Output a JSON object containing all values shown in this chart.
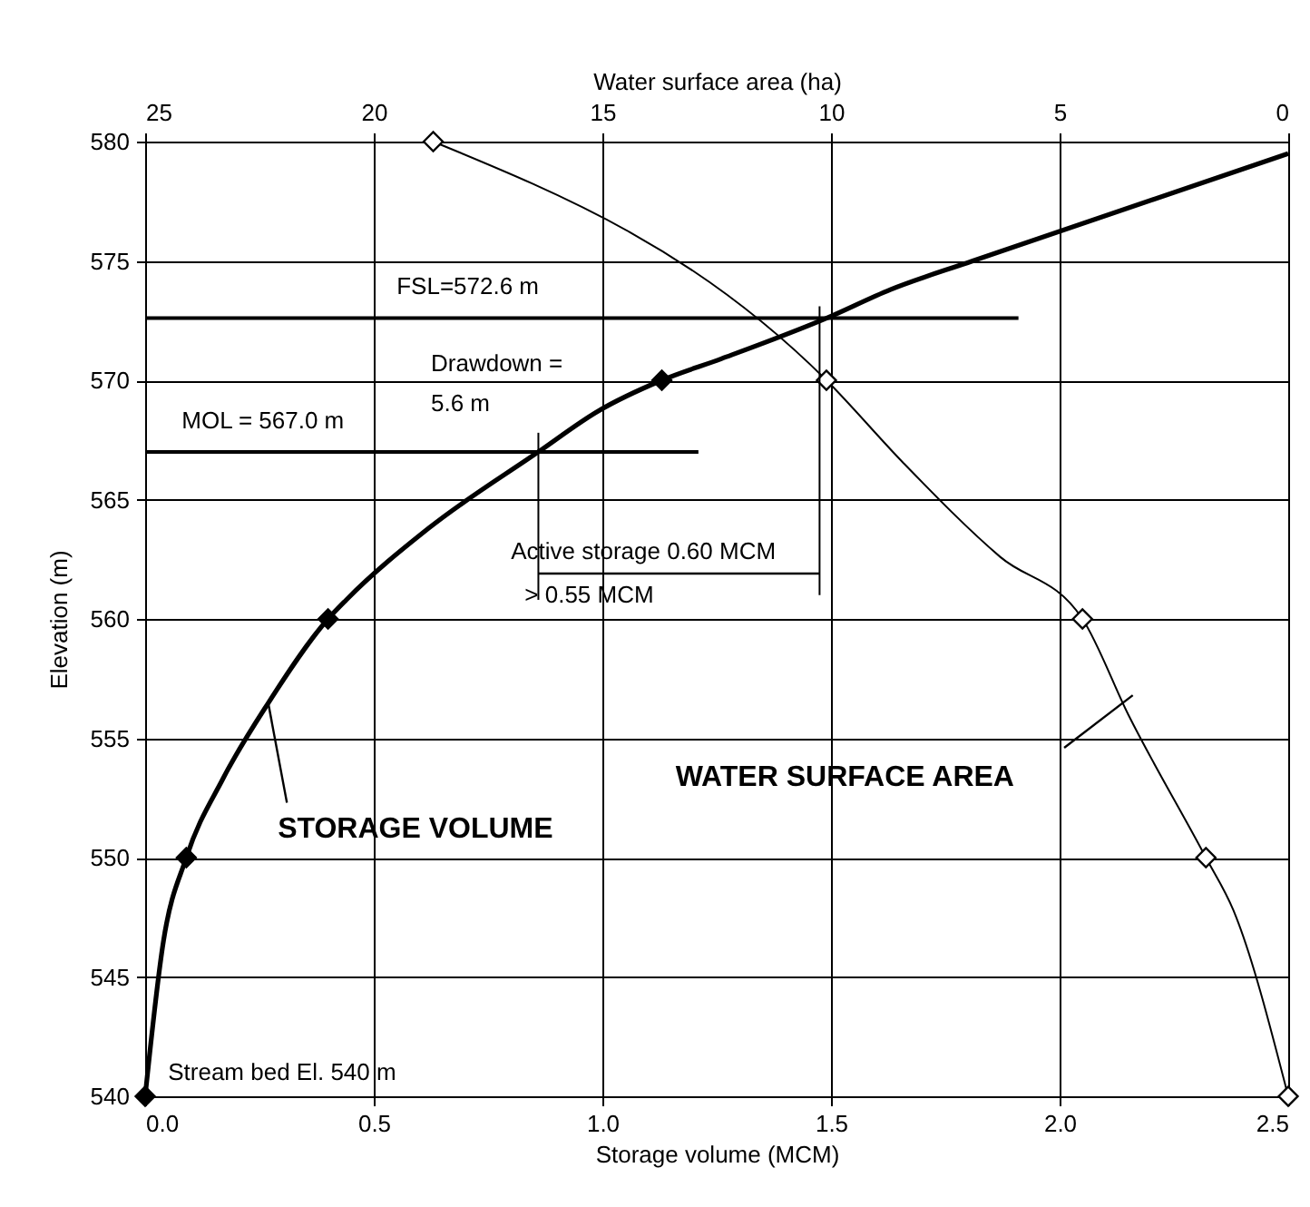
{
  "chart_data": {
    "type": "line",
    "xlabel": "Storage volume (MCM)",
    "ylabel": "Elevation (m)",
    "x2label": "Water surface area (ha)",
    "xlim": [
      0,
      2.5
    ],
    "xticks": [
      {
        "value": 0,
        "label": "0.0"
      },
      0.5,
      {
        "value": 1,
        "label": "1.0"
      },
      1.5,
      {
        "value": 2,
        "label": "2.0"
      },
      2.5
    ],
    "x2lim": [
      25,
      0
    ],
    "x2ticks": [
      25,
      20,
      15,
      10,
      5,
      0
    ],
    "ylim": [
      540,
      580
    ],
    "yticks": [
      540,
      545,
      550,
      555,
      560,
      565,
      570,
      575,
      580
    ],
    "grid": true,
    "series": [
      {
        "color": "#000000",
        "marker": "none",
        "x": [
          0,
          0.04,
          0.09,
          0.17,
          0.27,
          0.4,
          0.44,
          0.62,
          0.86,
          0.99,
          1.13,
          1.26,
          1.49,
          1.63,
          1.81,
          2.5
        ],
        "values": [
          540,
          546.5,
          550,
          553.3,
          556.5,
          560,
          560.8,
          563.8,
          567.0,
          568.7,
          570,
          570.9,
          572.6,
          573.8,
          575.0,
          579.5
        ]
      },
      {
        "type": "scatter",
        "color": "#000000",
        "marker": "diamond",
        "x": [
          0,
          0.09,
          0.4,
          1.13
        ],
        "values": [
          540,
          550,
          560,
          570
        ]
      },
      {
        "axis": "x2",
        "color": "#000000",
        "marker": "none",
        "x": [
          0,
          1.2,
          1.8,
          3.5,
          4.5,
          6.3,
          8.4,
          10.1,
          18.7
        ],
        "values": [
          540,
          547.8,
          550,
          556.0,
          560,
          562.6,
          566.5,
          570,
          580
        ]
      },
      {
        "type": "scatter",
        "axis": "x2",
        "color": "#000000",
        "marker": "diamond",
        "x": [
          0,
          1.8,
          4.5,
          10.1,
          18.7
        ],
        "values": [
          540,
          550,
          560,
          570,
          580
        ]
      },
      {
        "color": "#000000",
        "marker": "none",
        "x": [
          0,
          1.91
        ],
        "values": [
          572.6,
          572.6
        ]
      },
      {
        "color": "#000000",
        "marker": "none",
        "x": [
          0,
          1.21
        ],
        "values": [
          567.0,
          567.0
        ]
      },
      {
        "color": "#000000",
        "marker": "none",
        "x": [
          0.86,
          0.86
        ],
        "values": [
          567.8,
          560.8
        ]
      },
      {
        "color": "#000000",
        "marker": "none",
        "x": [
          1.475,
          1.475
        ],
        "values": [
          573.1,
          561.0
        ]
      },
      {
        "color": "#000000",
        "marker": "none",
        "x": [
          0.86,
          1.475
        ],
        "values": [
          561.9,
          561.9
        ]
      },
      {
        "color": "#000000",
        "marker": "none",
        "x": [
          0.31,
          0.27
        ],
        "values": [
          552.3,
          556.4
        ]
      },
      {
        "color": "#000000",
        "marker": "none",
        "x": [
          2.01,
          2.16
        ],
        "values": [
          554.6,
          556.8
        ]
      }
    ],
    "annotations": [
      "FSL=572.6 m",
      "Drawdown =\n5.6 m",
      "MOL = 567.0 m",
      "Active storage 0.60 MCM",
      "> 0.55 MCM",
      "Stream bed El. 540 m",
      "STORAGE VOLUME",
      "WATER SURFACE AREA"
    ]
  }
}
